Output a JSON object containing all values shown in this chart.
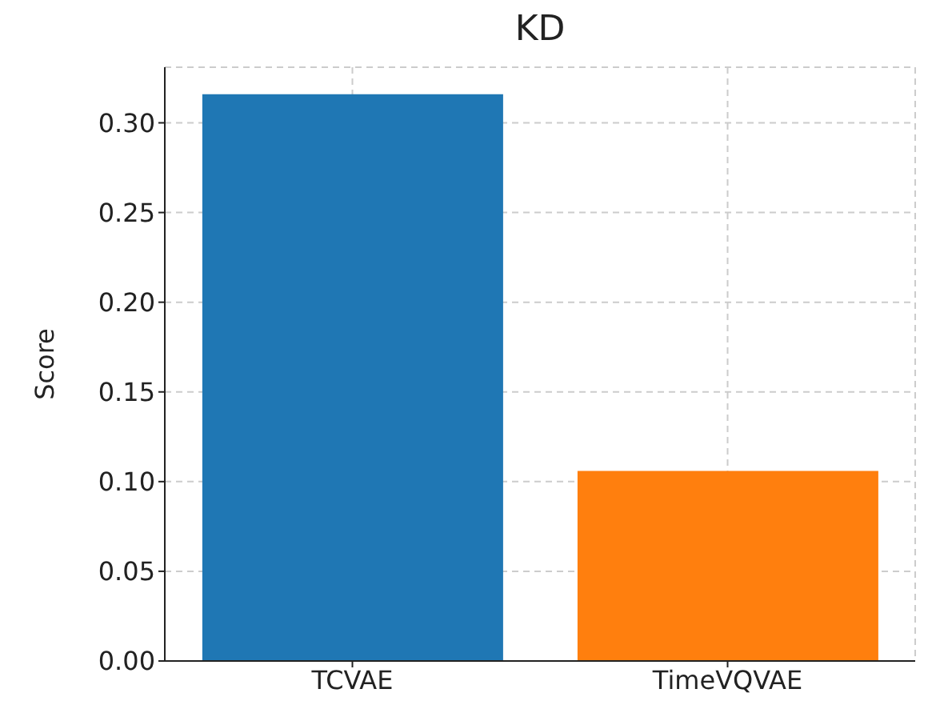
{
  "chart_data": {
    "type": "bar",
    "title": "KD",
    "ylabel": "Score",
    "categories": [
      "TCVAE",
      "TimeVQVAE"
    ],
    "values": [
      0.316,
      0.106
    ],
    "colors": [
      "#1f77b4",
      "#ff7f0e"
    ],
    "ylim": [
      0,
      0.331
    ],
    "yticks": [
      {
        "value": 0,
        "label": "0.00"
      },
      {
        "value": 0.05,
        "label": "0.05"
      },
      {
        "value": 0.1,
        "label": "0.10"
      },
      {
        "value": 0.15,
        "label": "0.15"
      },
      {
        "value": 0.2,
        "label": "0.20"
      },
      {
        "value": 0.25,
        "label": "0.25"
      },
      {
        "value": 0.3,
        "label": "0.30"
      }
    ],
    "grid": true
  }
}
